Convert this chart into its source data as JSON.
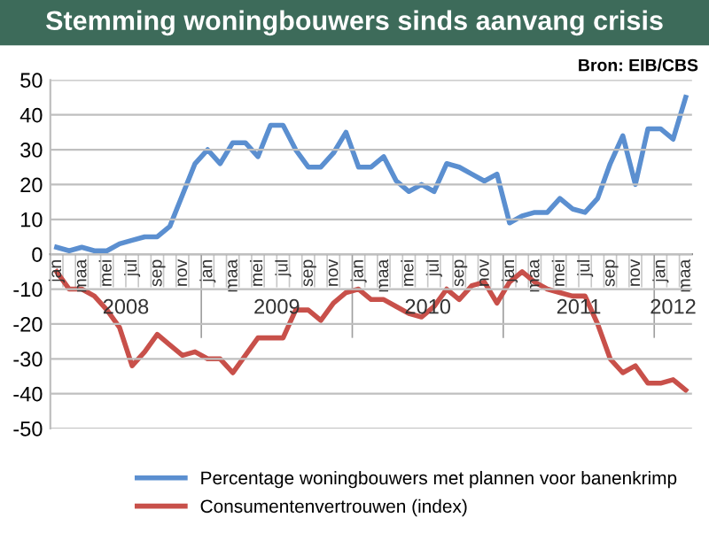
{
  "chart_data": {
    "type": "line",
    "title": "Stemming woningbouwers sinds aanvang crisis",
    "annotations": [
      "Bron: EIB/CBS",
      "2008",
      "2009",
      "2010",
      "2011",
      "2012"
    ],
    "categories": [
      "jan",
      null,
      "maa",
      null,
      "mei",
      null,
      "jul",
      null,
      "sep",
      null,
      "nov",
      null,
      "jan",
      null,
      "maa",
      null,
      "mei",
      null,
      "jul",
      null,
      "sep",
      null,
      "nov",
      null,
      "jan",
      null,
      "maa",
      null,
      "mei",
      null,
      "jul",
      null,
      "sep",
      null,
      "nov",
      null,
      "jan",
      null,
      "maa",
      null,
      "mei",
      null,
      "jul",
      null,
      "sep",
      null,
      "nov",
      null,
      "jan",
      null,
      "maa"
    ],
    "series": [
      {
        "name": "Percentage woningbouwers met plannen voor banenkrimp",
        "color": "#5b8fd0",
        "values": [
          2,
          1,
          2,
          1,
          1,
          3,
          4,
          5,
          5,
          8,
          17,
          26,
          30,
          26,
          32,
          32,
          28,
          37,
          37,
          30,
          25,
          25,
          29,
          35,
          25,
          25,
          28,
          21,
          18,
          20,
          18,
          26,
          25,
          23,
          21,
          23,
          9,
          11,
          12,
          12,
          16,
          13,
          12,
          16,
          26,
          34,
          20,
          36,
          36,
          33,
          45
        ]
      },
      {
        "name": "Consumentenvertrouwen (index)",
        "color": "#c8504a",
        "values": [
          -5,
          -10,
          -10,
          -12,
          -16,
          -21,
          -32,
          -28,
          -23,
          -26,
          -29,
          -28,
          -30,
          -30,
          -34,
          -29,
          -24,
          -24,
          -24,
          -16,
          -16,
          -19,
          -14,
          -11,
          -10,
          -13,
          -13,
          -15,
          -17,
          -18,
          -15,
          -10,
          -13,
          -9,
          -8,
          -14,
          -8,
          -5,
          -8,
          -10,
          -11,
          -12,
          -12,
          -20,
          -30,
          -34,
          -32,
          -37,
          -37,
          -36,
          -39
        ]
      }
    ],
    "ylim": [
      -50,
      50
    ],
    "yticks": [
      -50,
      -40,
      -30,
      -20,
      -10,
      0,
      10,
      20,
      30,
      40,
      50
    ],
    "grid": "y",
    "legend": "bottom",
    "marker": "none",
    "line_style": "solid"
  }
}
